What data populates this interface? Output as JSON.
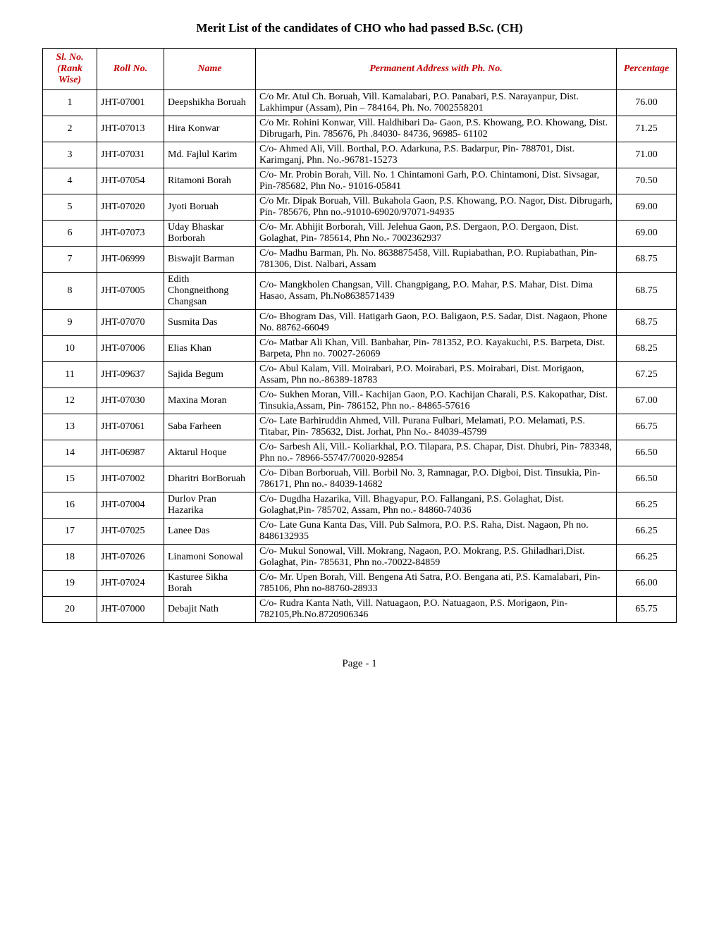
{
  "title": "Merit List of the candidates of CHO who had passed B.Sc. (CH)",
  "footer": "Page - 1",
  "headers": {
    "sl": "Sl. No. (Rank Wise)",
    "roll": "Roll No.",
    "name": "Name",
    "addr": "Permanent Address with Ph. No.",
    "perc": "Percentage"
  },
  "rows": [
    {
      "sl": "1",
      "roll": "JHT-07001",
      "name": "Deepshikha Boruah",
      "addr": "C/o Mr. Atul Ch. Boruah, Vill. Kamalabari, P.O. Panabari, P.S. Narayanpur, Dist. Lakhimpur (Assam), Pin – 784164, Ph. No. 7002558201",
      "perc": "76.00"
    },
    {
      "sl": "2",
      "roll": "JHT-07013",
      "name": "Hira Konwar",
      "addr": "C/o Mr. Rohini Konwar, Vill. Haldhibari Da- Gaon, P.S. Khowang, P.O. Khowang, Dist. Dibrugarh, Pin. 785676, Ph .84030- 84736, 96985- 61102",
      "perc": "71.25"
    },
    {
      "sl": "3",
      "roll": "JHT-07031",
      "name": "Md. Fajlul Karim",
      "addr": "C/o- Ahmed Ali, Vill. Borthal, P.O. Adarkuna, P.S. Badarpur, Pin- 788701, Dist. Karimganj,  Phn. No.-96781-15273",
      "perc": "71.00"
    },
    {
      "sl": "4",
      "roll": "JHT-07054",
      "name": "Ritamoni Borah",
      "addr": "C/o- Mr. Probin Borah, Vill. No. 1 Chintamoni Garh, P.O. Chintamoni, Dist. Sivsagar, Pin-785682, Phn No.- 91016-05841",
      "perc": "70.50"
    },
    {
      "sl": "5",
      "roll": "JHT-07020",
      "name": "Jyoti Boruah",
      "addr": "C/o Mr. Dipak Boruah, Vill. Bukahola Gaon, P.S. Khowang, P.O. Nagor, Dist. Dibrugarh, Pin- 785676, Phn no.-91010-69020/97071-94935",
      "perc": "69.00"
    },
    {
      "sl": "6",
      "roll": "JHT-07073",
      "name": "Uday Bhaskar Borborah",
      "addr": "C/o- Mr. Abhijit Borborah, Vill. Jelehua Gaon, P.S. Dergaon, P.O. Dergaon, Dist. Golaghat, Pin- 785614,  Phn No.- 7002362937",
      "perc": "69.00"
    },
    {
      "sl": "7",
      "roll": "JHT-06999",
      "name": "Biswajit Barman",
      "addr": "C/o- Madhu Barman, Ph. No. 8638875458, Vill. Rupiabathan, P.O. Rupiabathan, Pin- 781306, Dist. Nalbari, Assam",
      "perc": "68.75"
    },
    {
      "sl": "8",
      "roll": "JHT-07005",
      "name": "Edith Chongneithong Changsan",
      "addr": "C/o- Mangkholen Changsan, Vill. Changpigang, P.O. Mahar, P.S. Mahar, Dist. Dima Hasao, Assam, Ph.No8638571439",
      "perc": "68.75"
    },
    {
      "sl": "9",
      "roll": "JHT-07070",
      "name": "Susmita Das",
      "addr": "C/o- Bhogram Das, Vill. Hatigarh Gaon, P.O. Baligaon, P.S. Sadar, Dist. Nagaon, Phone No. 88762-66049",
      "perc": "68.75"
    },
    {
      "sl": "10",
      "roll": "JHT-07006",
      "name": "Elias Khan",
      "addr": "C/o- Matbar Ali Khan, Vill. Banbahar, Pin- 781352, P.O. Kayakuchi, P.S. Barpeta, Dist. Barpeta, Phn no. 70027-26069",
      "perc": "68.25"
    },
    {
      "sl": "11",
      "roll": "JHT-09637",
      "name": "Sajida Begum",
      "addr": "C/o- Abul Kalam, Vill. Moirabari, P.O. Moirabari, P.S. Moirabari, Dist. Morigaon, Assam, Phn no.-86389-18783",
      "perc": "67.25"
    },
    {
      "sl": "12",
      "roll": "JHT-07030",
      "name": "Maxina Moran",
      "addr": "C/o- Sukhen Moran, Vill.- Kachijan Gaon, P.O. Kachijan Charali, P.S. Kakopathar, Dist. Tinsukia,Assam, Pin- 786152, Phn no.- 84865-57616",
      "perc": "67.00"
    },
    {
      "sl": "13",
      "roll": "JHT-07061",
      "name": "Saba Farheen",
      "addr": "C/o- Late Barhiruddin Ahmed, Vill. Purana Fulbari, Melamati, P.O. Melamati, P.S. Titabar, Pin- 785632, Dist. Jorhat, Phn No.- 84039-45799",
      "perc": "66.75"
    },
    {
      "sl": "14",
      "roll": "JHT-06987",
      "name": "Aktarul Hoque",
      "addr": "C/o- Sarbesh Ali, Vill.- Koliarkhal, P.O. Tilapara, P.S. Chapar, Dist. Dhubri, Pin- 783348, Phn no.- 78966-55747/70020-92854",
      "perc": "66.50"
    },
    {
      "sl": "15",
      "roll": "JHT-07002",
      "name": "Dharitri BorBoruah",
      "addr": "C/o- Diban Borboruah, Vill. Borbil No. 3, Ramnagar, P.O. Digboi, Dist. Tinsukia, Pin- 786171, Phn no.- 84039-14682",
      "perc": "66.50"
    },
    {
      "sl": "16",
      "roll": "JHT-07004",
      "name": "Durlov Pran Hazarika",
      "addr": "C/o- Dugdha Hazarika, Vill. Bhagyapur, P.O. Fallangani, P.S. Golaghat, Dist. Golaghat,Pin- 785702, Assam, Phn no.- 84860-74036",
      "perc": "66.25"
    },
    {
      "sl": "17",
      "roll": "JHT-07025",
      "name": "Lanee Das",
      "addr": "C/o- Late Guna Kanta Das, Vill. Pub Salmora, P.O. P.S. Raha, Dist. Nagaon, Ph no. 8486132935",
      "perc": "66.25"
    },
    {
      "sl": "18",
      "roll": "JHT-07026",
      "name": "Linamoni Sonowal",
      "addr": "C/o- Mukul Sonowal, Vill. Mokrang, Nagaon, P.O. Mokrang, P.S. Ghiladhari,Dist. Golaghat, Pin- 785631, Phn no.-70022-84859",
      "perc": "66.25"
    },
    {
      "sl": "19",
      "roll": "JHT-07024",
      "name": "Kasturee Sikha Borah",
      "addr": "C/o- Mr. Upen Borah, Vill. Bengena Ati Satra, P.O. Bengana  ati, P.S. Kamalabari, Pin-785106, Phn no-88760-28933",
      "perc": "66.00"
    },
    {
      "sl": "20",
      "roll": "JHT-07000",
      "name": "Debajit Nath",
      "addr": "C/o- Rudra Kanta Nath, Vill. Natuagaon, P.O. Natuagaon, P.S. Morigaon, Pin- 782105,Ph.No.8720906346",
      "perc": "65.75"
    }
  ]
}
